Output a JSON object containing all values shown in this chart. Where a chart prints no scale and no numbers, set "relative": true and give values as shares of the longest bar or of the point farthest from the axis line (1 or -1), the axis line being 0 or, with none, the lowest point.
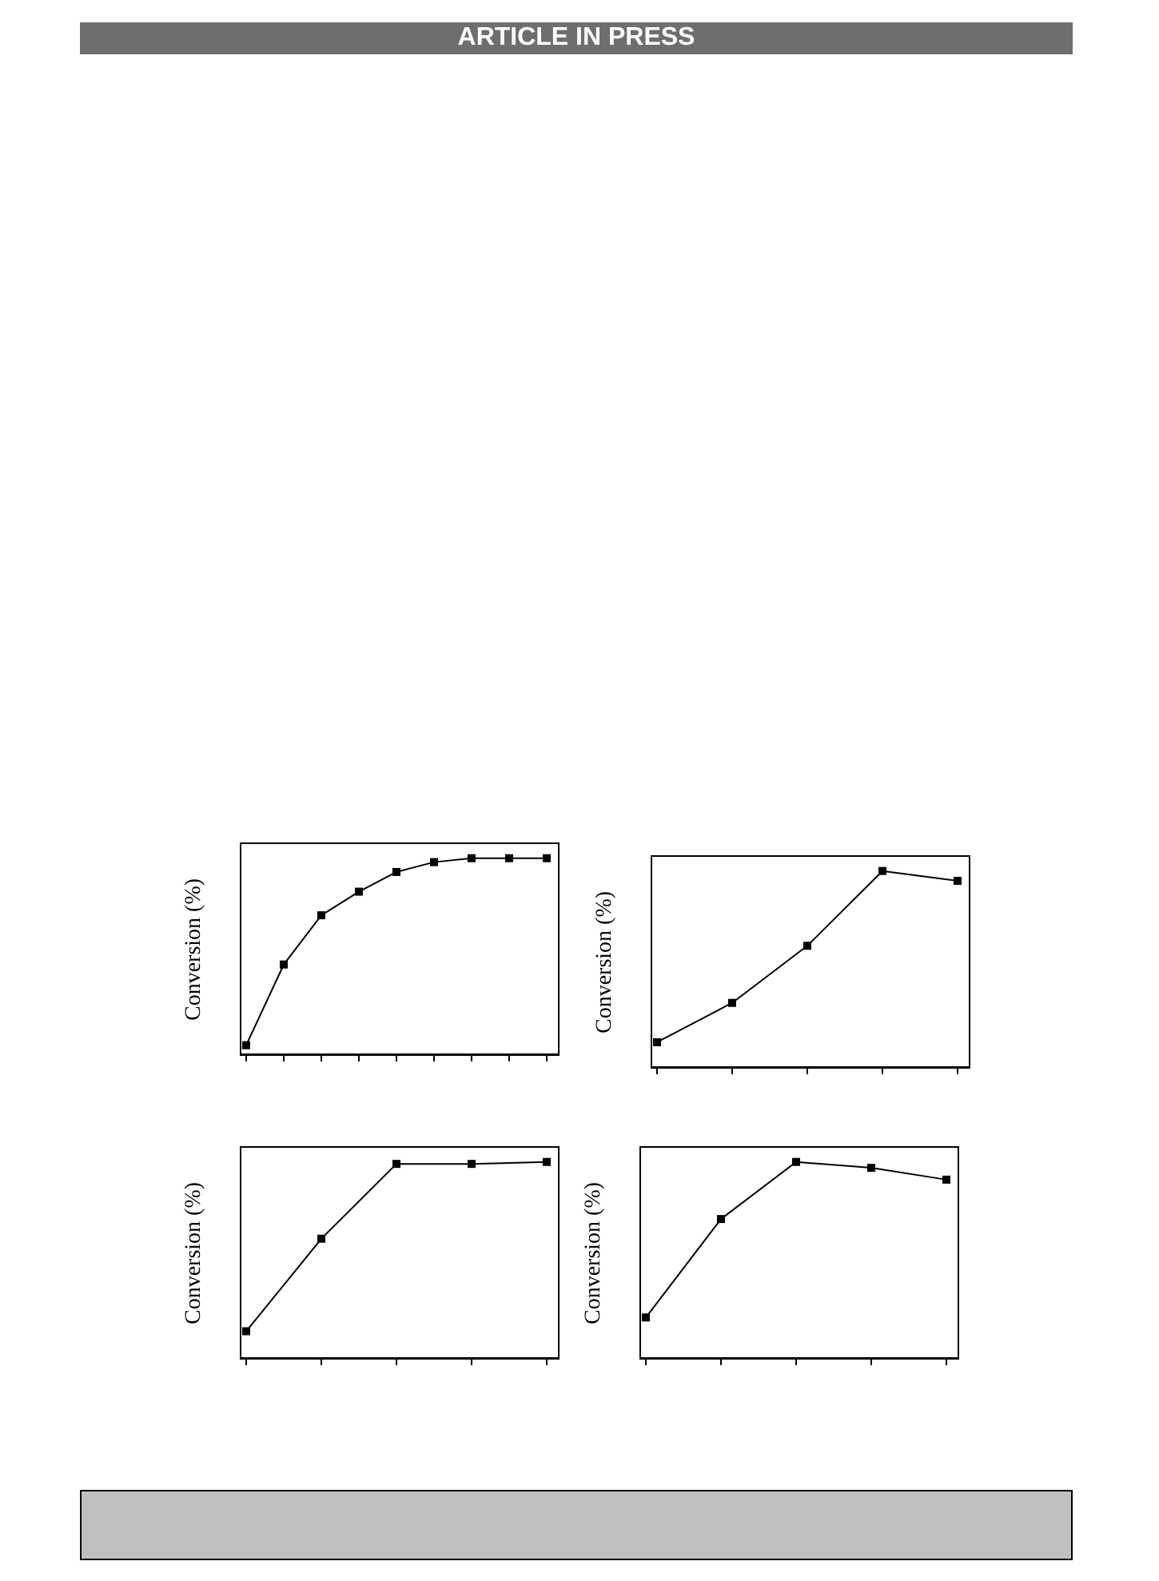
{
  "chart_data": [
    {
      "type": "line",
      "annotations": [
        "ARTICLE IN PRESS"
      ],
      "ylabel": "Conversion (%)",
      "relative": true,
      "marker": "square",
      "categories": [
        null,
        null,
        null,
        null,
        null,
        null,
        null,
        null,
        null
      ],
      "series": [
        {
          "color": "#000000",
          "values": [
            0.05,
            0.46,
            0.71,
            0.83,
            0.93,
            0.98,
            1,
            1,
            1
          ]
        }
      ]
    },
    {
      "type": "line",
      "ylabel": "Conversion (%)",
      "relative": true,
      "marker": "square",
      "categories": [
        null,
        null,
        null,
        null,
        null
      ],
      "series": [
        {
          "color": "#000000",
          "values": [
            0.13,
            0.33,
            0.62,
            1,
            0.95
          ]
        }
      ]
    },
    {
      "type": "line",
      "ylabel": "Conversion (%)",
      "relative": true,
      "marker": "square",
      "categories": [
        null,
        null,
        null,
        null,
        null
      ],
      "series": [
        {
          "color": "#000000",
          "values": [
            0.14,
            0.61,
            0.99,
            0.99,
            1
          ]
        }
      ]
    },
    {
      "type": "line",
      "ylabel": "Conversion (%)",
      "relative": true,
      "marker": "square",
      "categories": [
        null,
        null,
        null,
        null,
        null
      ],
      "series": [
        {
          "color": "#000000",
          "values": [
            0.21,
            0.71,
            1,
            0.97,
            0.91
          ]
        }
      ]
    }
  ]
}
